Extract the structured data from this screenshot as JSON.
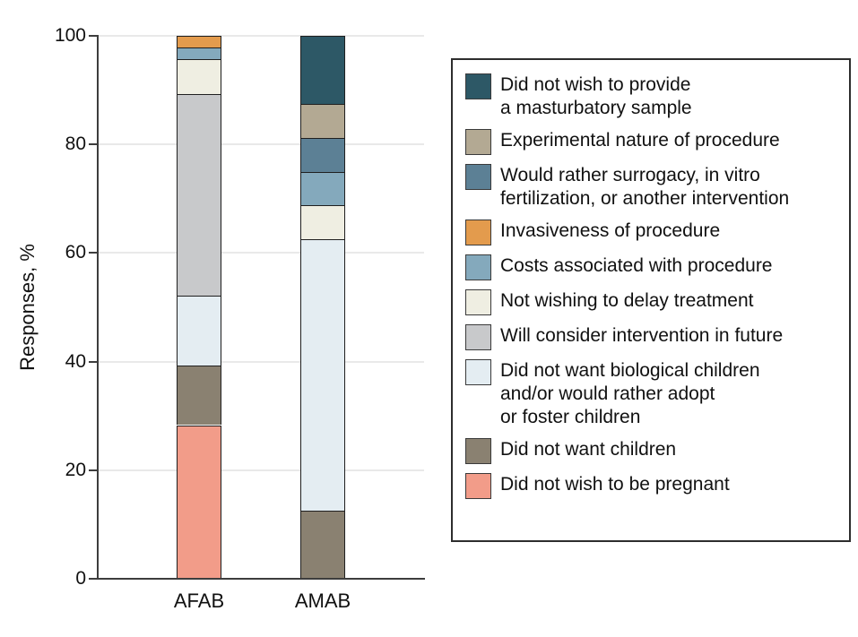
{
  "chart_data": {
    "type": "bar",
    "variant": "stacked-vertical",
    "title": "",
    "ylabel": "Responses, %",
    "xlabel": "",
    "ylim": [
      0,
      100
    ],
    "yticks": [
      0,
      20,
      40,
      60,
      80,
      100
    ],
    "grid": "horizontal-light-gray",
    "legend_position": "right",
    "categories": [
      "AFAB",
      "AMAB"
    ],
    "series_note": "series listed bottom-to-top of stack; values aligned to categories order; legend shown in reverse (top-to-bottom) order",
    "series": [
      {
        "id": "pregnant",
        "name": "Did not wish to be pregnant",
        "legend_lines": [
          "Did not wish to be pregnant"
        ],
        "color": "#F29C89",
        "values": [
          28.3,
          0
        ]
      },
      {
        "id": "no-children",
        "name": "Did not want children",
        "legend_lines": [
          "Did not want children"
        ],
        "color": "#8A8171",
        "values": [
          10.9,
          12.5
        ]
      },
      {
        "id": "no-biological",
        "name": "Did not want biological children and/or would rather adopt or foster children",
        "legend_lines": [
          "Did not want biological children",
          "and/or would rather adopt",
          "or foster children"
        ],
        "color": "#E4EDF2",
        "values": [
          13.0,
          50.0
        ]
      },
      {
        "id": "future",
        "name": "Will consider intervention in future",
        "legend_lines": [
          "Will consider intervention in future"
        ],
        "color": "#C8C9CB",
        "values": [
          37.0,
          0
        ]
      },
      {
        "id": "delay",
        "name": "Not wishing to delay treatment",
        "legend_lines": [
          "Not wishing to delay treatment"
        ],
        "color": "#EFEEE2",
        "values": [
          6.5,
          6.25
        ]
      },
      {
        "id": "costs",
        "name": "Costs associated with procedure",
        "legend_lines": [
          "Costs associated with procedure"
        ],
        "color": "#84A9BC",
        "values": [
          2.2,
          6.25
        ]
      },
      {
        "id": "invasiveness",
        "name": "Invasiveness of procedure",
        "legend_lines": [
          "Invasiveness of procedure"
        ],
        "color": "#E39B4D",
        "values": [
          2.2,
          0
        ]
      },
      {
        "id": "surrogacy",
        "name": "Would rather surrogacy, in vitro fertilization, or another intervention",
        "legend_lines": [
          "Would rather surrogacy, in vitro",
          "fertilization, or another intervention"
        ],
        "color": "#5C8095",
        "values": [
          0,
          6.25
        ]
      },
      {
        "id": "experimental",
        "name": "Experimental nature of procedure",
        "legend_lines": [
          "Experimental nature of procedure"
        ],
        "color": "#B3A993",
        "values": [
          0,
          6.25
        ]
      },
      {
        "id": "masturbatory",
        "name": "Did not wish to provide a masturbatory sample",
        "legend_lines": [
          "Did not wish to provide",
          "a masturbatory sample"
        ],
        "color": "#2D5866",
        "values": [
          0,
          12.5
        ]
      }
    ],
    "style_colors": {
      "axis": "#3d3d3d",
      "gridline": "#e9e9e9",
      "segment_border": "#1f1f1f",
      "legend_border": "#2d2d2d",
      "text": "#111111",
      "background": "#ffffff"
    }
  }
}
